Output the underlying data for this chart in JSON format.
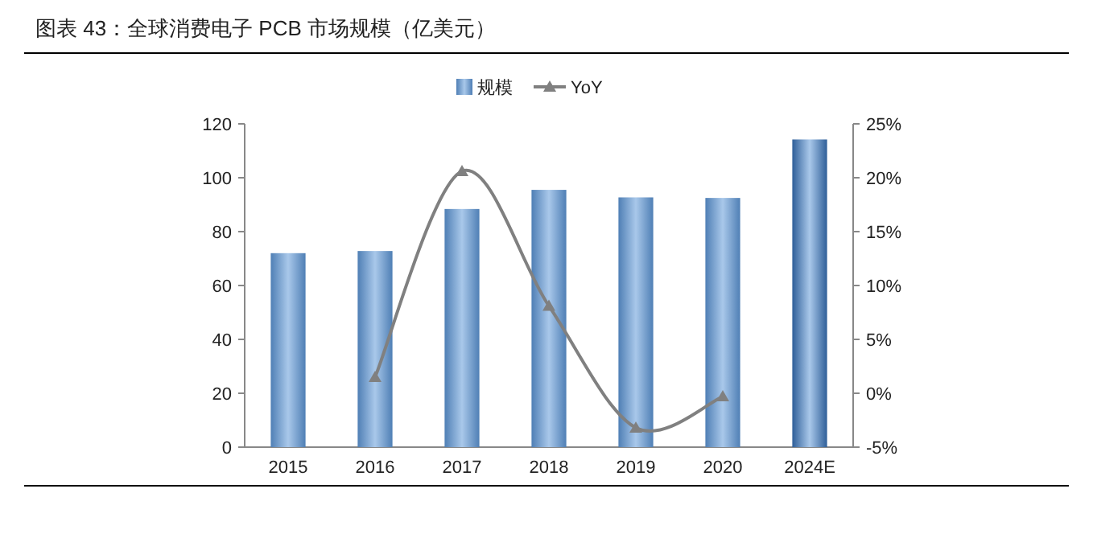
{
  "chart_data": {
    "type": "bar",
    "title": "图表 43：全球消费电子 PCB 市场规模（亿美元）",
    "categories": [
      "2015",
      "2016",
      "2017",
      "2018",
      "2019",
      "2020",
      "2024E"
    ],
    "series": [
      {
        "name": "规模",
        "color": "#4f7fb5",
        "colors": [
          "#4f7fb5",
          "#4f7fb5",
          "#4f7fb5",
          "#4f7fb5",
          "#4f7fb5",
          "#4f7fb5",
          "#2f5f99"
        ],
        "values": [
          72.0,
          72.8,
          88.4,
          95.5,
          92.7,
          92.5,
          114.2
        ]
      },
      {
        "name": "YoY",
        "type": "line",
        "axis": "y2",
        "color": "#808080",
        "marker": "triangle",
        "values": [
          null,
          1.5,
          20.6,
          8.1,
          -3.2,
          -0.3,
          null
        ]
      }
    ],
    "ylim": [
      0,
      120
    ],
    "yticks": [
      0,
      20,
      40,
      60,
      80,
      100,
      120
    ],
    "y2lim": [
      -5,
      25
    ],
    "y2ticks": [
      {
        "value": -5,
        "label": "-5%"
      },
      {
        "value": 0,
        "label": "0%"
      },
      {
        "value": 5,
        "label": "5%"
      },
      {
        "value": 10,
        "label": "10%"
      },
      {
        "value": 15,
        "label": "15%"
      },
      {
        "value": 20,
        "label": "20%"
      },
      {
        "value": 25,
        "label": "25%"
      }
    ],
    "legend": "top",
    "grid": false
  }
}
